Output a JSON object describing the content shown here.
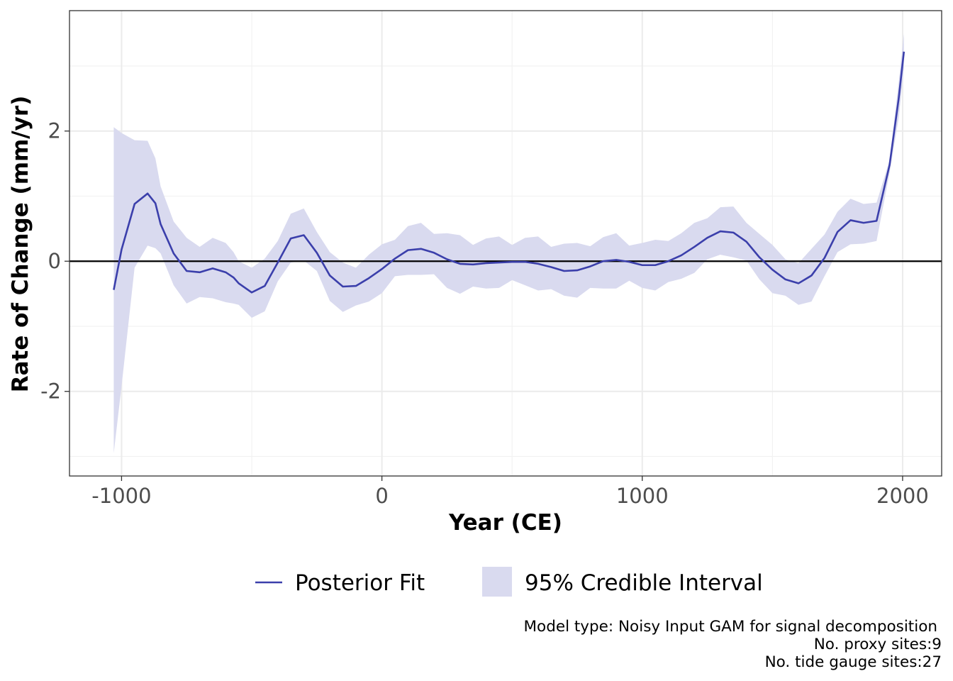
{
  "chart_data": {
    "type": "line",
    "title": "",
    "xlabel": "Year (CE)",
    "ylabel": "Rate of Change (mm/yr)",
    "xlim": [
      -1200,
      2150
    ],
    "ylim": [
      -3.3,
      3.85
    ],
    "x_ticks": [
      -1000,
      0,
      1000,
      2000
    ],
    "x_tick_labels": [
      "-1000",
      "0",
      "1000",
      "2000"
    ],
    "y_ticks": [
      -2,
      0,
      2
    ],
    "y_tick_labels": [
      "-2",
      "0",
      "2"
    ],
    "grid": true,
    "reference_line": {
      "y": 0
    },
    "legend": {
      "position": "bottom",
      "entries": [
        "Posterior Fit",
        "95% Credible Interval"
      ]
    },
    "series": [
      {
        "name": "Posterior Fit",
        "kind": "line",
        "color": "#3b3fab",
        "x": [
          -1030,
          -1000,
          -950,
          -900,
          -870,
          -850,
          -800,
          -750,
          -700,
          -650,
          -600,
          -570,
          -550,
          -500,
          -450,
          -400,
          -350,
          -300,
          -250,
          -200,
          -150,
          -100,
          -50,
          0,
          50,
          100,
          150,
          200,
          250,
          300,
          350,
          400,
          450,
          500,
          550,
          600,
          650,
          700,
          750,
          800,
          850,
          900,
          950,
          1000,
          1050,
          1100,
          1150,
          1200,
          1250,
          1300,
          1350,
          1400,
          1450,
          1500,
          1550,
          1600,
          1650,
          1700,
          1750,
          1800,
          1850,
          1900,
          1950,
          1985,
          2005
        ],
        "values": [
          -0.44,
          0.18,
          0.88,
          1.04,
          0.89,
          0.57,
          0.12,
          -0.15,
          -0.17,
          -0.11,
          -0.17,
          -0.25,
          -0.34,
          -0.48,
          -0.38,
          -0.02,
          0.35,
          0.4,
          0.13,
          -0.22,
          -0.39,
          -0.38,
          -0.26,
          -0.12,
          0.04,
          0.17,
          0.19,
          0.13,
          0.03,
          -0.04,
          -0.05,
          -0.03,
          -0.02,
          -0.01,
          -0.01,
          -0.04,
          -0.09,
          -0.15,
          -0.14,
          -0.08,
          0.0,
          0.02,
          -0.01,
          -0.06,
          -0.06,
          0.0,
          0.09,
          0.22,
          0.36,
          0.46,
          0.44,
          0.3,
          0.06,
          -0.13,
          -0.28,
          -0.34,
          -0.22,
          0.05,
          0.45,
          0.63,
          0.59,
          0.62,
          1.48,
          2.5,
          3.22
        ]
      },
      {
        "name": "95% Credible Interval",
        "kind": "ribbon",
        "color": "#d9daef",
        "x": [
          -1030,
          -1000,
          -950,
          -900,
          -870,
          -850,
          -800,
          -750,
          -700,
          -650,
          -600,
          -570,
          -550,
          -500,
          -450,
          -400,
          -350,
          -300,
          -250,
          -200,
          -150,
          -100,
          -50,
          0,
          50,
          100,
          150,
          200,
          250,
          300,
          350,
          400,
          450,
          500,
          550,
          600,
          650,
          700,
          750,
          800,
          850,
          900,
          950,
          1000,
          1050,
          1100,
          1150,
          1200,
          1250,
          1300,
          1350,
          1400,
          1450,
          1500,
          1550,
          1600,
          1650,
          1700,
          1750,
          1800,
          1850,
          1900,
          1950,
          1985,
          2005
        ],
        "upper": [
          2.06,
          1.97,
          1.86,
          1.85,
          1.58,
          1.15,
          0.61,
          0.36,
          0.22,
          0.36,
          0.28,
          0.14,
          0.0,
          -0.1,
          0.04,
          0.31,
          0.73,
          0.81,
          0.45,
          0.14,
          -0.02,
          -0.1,
          0.1,
          0.26,
          0.33,
          0.54,
          0.59,
          0.42,
          0.43,
          0.4,
          0.25,
          0.35,
          0.38,
          0.25,
          0.36,
          0.38,
          0.22,
          0.27,
          0.28,
          0.23,
          0.37,
          0.43,
          0.24,
          0.28,
          0.33,
          0.31,
          0.43,
          0.59,
          0.66,
          0.83,
          0.84,
          0.59,
          0.42,
          0.25,
          0.03,
          -0.03,
          0.19,
          0.41,
          0.76,
          0.96,
          0.88,
          0.9,
          1.55,
          2.75,
          3.5
        ],
        "lower": [
          -2.95,
          -1.92,
          -0.1,
          0.24,
          0.2,
          0.12,
          -0.37,
          -0.65,
          -0.55,
          -0.57,
          -0.63,
          -0.65,
          -0.67,
          -0.87,
          -0.77,
          -0.31,
          -0.02,
          0.01,
          -0.15,
          -0.61,
          -0.78,
          -0.68,
          -0.62,
          -0.49,
          -0.23,
          -0.21,
          -0.21,
          -0.2,
          -0.41,
          -0.5,
          -0.39,
          -0.42,
          -0.41,
          -0.29,
          -0.37,
          -0.45,
          -0.43,
          -0.53,
          -0.56,
          -0.41,
          -0.42,
          -0.42,
          -0.3,
          -0.41,
          -0.45,
          -0.32,
          -0.27,
          -0.18,
          0.03,
          0.1,
          0.06,
          0.01,
          -0.28,
          -0.49,
          -0.53,
          -0.67,
          -0.62,
          -0.23,
          0.14,
          0.26,
          0.27,
          0.31,
          1.36,
          2.2,
          2.95
        ]
      }
    ]
  },
  "caption": {
    "lines": [
      "Model type: Noisy Input GAM for signal decomposition",
      "No. proxy sites:9",
      "No. tide gauge sites:27"
    ]
  }
}
